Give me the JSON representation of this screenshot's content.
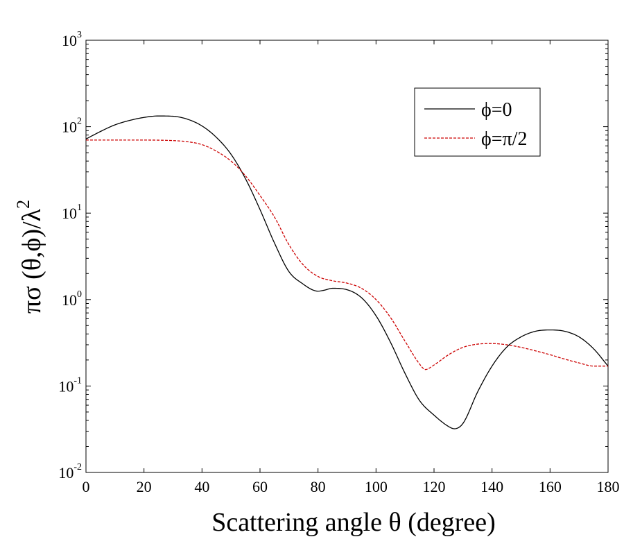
{
  "chart_data": {
    "type": "line",
    "xlabel": "Scattering angle θ (degree)",
    "ylabel": "πσ (θ,ϕ)/λ",
    "ylabel_sup": "2",
    "xlim": [
      0,
      180
    ],
    "ylim": [
      0.01,
      1000
    ],
    "yscale": "log",
    "grid": false,
    "legend_position": "top-right",
    "x_ticks": [
      "0",
      "20",
      "40",
      "60",
      "80",
      "100",
      "120",
      "140",
      "160",
      "180"
    ],
    "y_ticks": [
      {
        "base": "10",
        "exp": "-2",
        "value": 0.01
      },
      {
        "base": "10",
        "exp": "-1",
        "value": 0.1
      },
      {
        "base": "10",
        "exp": "0",
        "value": 1
      },
      {
        "base": "10",
        "exp": "1",
        "value": 10
      },
      {
        "base": "10",
        "exp": "2",
        "value": 100
      },
      {
        "base": "10",
        "exp": "3",
        "value": 1000
      }
    ],
    "series": [
      {
        "name": "ϕ=0",
        "color": "#000000",
        "dash": "solid",
        "x": [
          0,
          5,
          10,
          15,
          20,
          25,
          30,
          35,
          40,
          45,
          50,
          55,
          60,
          65,
          70,
          75,
          78,
          80,
          82,
          85,
          90,
          95,
          100,
          105,
          110,
          115,
          120,
          125,
          127,
          130,
          135,
          140,
          145,
          150,
          155,
          160,
          165,
          170,
          175,
          180
        ],
        "y": [
          72,
          88,
          105,
          118,
          128,
          133,
          132,
          122,
          102,
          75,
          48,
          25,
          11,
          4.5,
          2.1,
          1.5,
          1.3,
          1.25,
          1.28,
          1.35,
          1.3,
          1.05,
          0.65,
          0.32,
          0.14,
          0.068,
          0.046,
          0.034,
          0.032,
          0.037,
          0.085,
          0.17,
          0.28,
          0.37,
          0.43,
          0.445,
          0.43,
          0.37,
          0.27,
          0.17
        ]
      },
      {
        "name": "ϕ=π/2",
        "color": "#cc0000",
        "dash": "dashed",
        "x": [
          0,
          10,
          20,
          30,
          35,
          40,
          45,
          50,
          55,
          60,
          65,
          70,
          75,
          80,
          85,
          90,
          95,
          100,
          105,
          110,
          115,
          117,
          120,
          125,
          130,
          135,
          140,
          145,
          150,
          155,
          160,
          165,
          170,
          175,
          180
        ],
        "y": [
          70,
          70,
          70,
          69,
          67,
          62,
          52,
          40,
          27,
          16,
          9,
          4.3,
          2.5,
          1.85,
          1.65,
          1.55,
          1.35,
          1.0,
          0.62,
          0.33,
          0.18,
          0.155,
          0.175,
          0.23,
          0.28,
          0.305,
          0.31,
          0.3,
          0.28,
          0.255,
          0.23,
          0.205,
          0.185,
          0.17,
          0.17
        ]
      }
    ]
  }
}
